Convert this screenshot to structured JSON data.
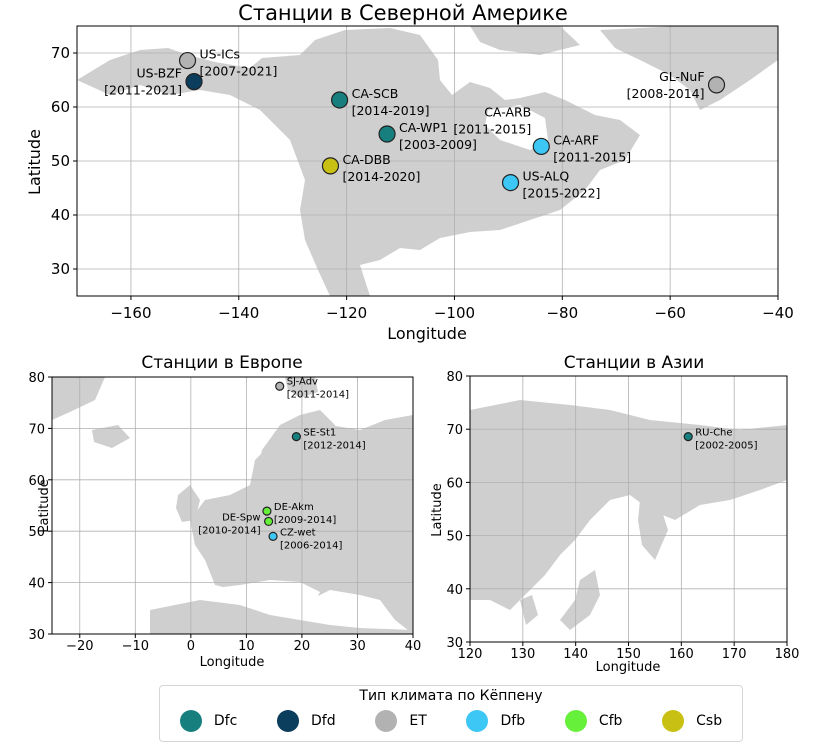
{
  "maps": [
    {
      "id": "na",
      "title": "Станции в Северной Америке",
      "xlabel": "Longitude",
      "ylabel": "Latitude",
      "xlim": [
        -170,
        -40
      ],
      "ylim": [
        25,
        75
      ],
      "xticks": [
        -160,
        -140,
        -120,
        -100,
        -80,
        -60,
        -40
      ],
      "yticks": [
        30,
        40,
        50,
        60,
        70
      ],
      "stations": [
        {
          "code": "US-ICs",
          "years": "[2007-2021]",
          "lon": -149.5,
          "lat": 68.6,
          "climate": "ET"
        },
        {
          "code": "US-BZF",
          "years": "[2011-2021]",
          "lon": -148.3,
          "lat": 64.7,
          "climate": "Dfd"
        },
        {
          "code": "CA-SCB",
          "years": "[2014-2019]",
          "lon": -121.3,
          "lat": 61.3,
          "climate": "Dfc"
        },
        {
          "code": "CA-WP1",
          "years": "[2003-2009]",
          "lon": -112.5,
          "lat": 55.0,
          "climate": "Dfc"
        },
        {
          "code": "CA-DBB",
          "years": "[2014-2020]",
          "lon": -123.0,
          "lat": 49.1,
          "climate": "Csb"
        },
        {
          "code": "CA-ARB",
          "years": "[2011-2015]",
          "lon": -83.9,
          "lat": 52.7,
          "climate": "Dfb"
        },
        {
          "code": "CA-ARF",
          "years": "[2011-2015]",
          "lon": -83.9,
          "lat": 52.7,
          "climate": "Dfb"
        },
        {
          "code": "US-ALQ",
          "years": "[2015-2022]",
          "lon": -89.6,
          "lat": 46.0,
          "climate": "Dfb"
        },
        {
          "code": "GL-NuF",
          "years": "[2008-2014]",
          "lon": -51.4,
          "lat": 64.1,
          "climate": "ET"
        }
      ]
    },
    {
      "id": "eu",
      "title": "Станции в Европе",
      "xlabel": "Longitude",
      "ylabel": "Latitude",
      "xlim": [
        -25,
        40
      ],
      "ylim": [
        30,
        80
      ],
      "xticks": [
        -20,
        -10,
        0,
        10,
        20,
        30,
        40
      ],
      "yticks": [
        30,
        40,
        50,
        60,
        70,
        80
      ],
      "stations": [
        {
          "code": "SJ-Adv",
          "years": "[2011-2014]",
          "lon": 16.0,
          "lat": 78.2,
          "climate": "ET"
        },
        {
          "code": "SE-St1",
          "years": "[2012-2014]",
          "lon": 19.0,
          "lat": 68.4,
          "climate": "Dfc"
        },
        {
          "code": "DE-Akm",
          "years": "[2009-2014]",
          "lon": 13.7,
          "lat": 53.9,
          "climate": "Cfb"
        },
        {
          "code": "DE-Spw",
          "years": "[2010-2014]",
          "lon": 14.0,
          "lat": 51.9,
          "climate": "Cfb"
        },
        {
          "code": "CZ-wet",
          "years": "[2006-2014]",
          "lon": 14.8,
          "lat": 49.0,
          "climate": "Dfb"
        }
      ]
    },
    {
      "id": "as",
      "title": "Станции в Азии",
      "xlabel": "Longitude",
      "ylabel": "Latitude",
      "xlim": [
        120,
        180
      ],
      "ylim": [
        30,
        80
      ],
      "xticks": [
        120,
        130,
        140,
        150,
        160,
        170,
        180
      ],
      "yticks": [
        30,
        40,
        50,
        60,
        70,
        80
      ],
      "stations": [
        {
          "code": "RU-Che",
          "years": "[2002-2005]",
          "lon": 161.3,
          "lat": 68.6,
          "climate": "Dfc"
        }
      ]
    }
  ],
  "legend": {
    "title": "Тип климата по Кёппену",
    "items": [
      {
        "label": "Dfc",
        "color": "#17807e"
      },
      {
        "label": "Dfd",
        "color": "#0b3d5c"
      },
      {
        "label": "ET",
        "color": "#b2b2b2"
      },
      {
        "label": "Dfb",
        "color": "#3cc7f5"
      },
      {
        "label": "Cfb",
        "color": "#66f03a"
      },
      {
        "label": "Csb",
        "color": "#c8c012"
      }
    ]
  }
}
